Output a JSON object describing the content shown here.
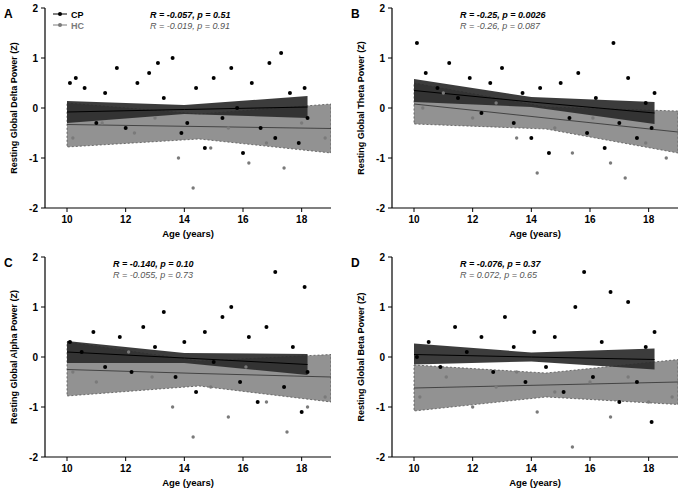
{
  "chart_data": [
    {
      "type": "scatter",
      "title": "A",
      "x_label": "Age (years)",
      "y_label": "Resting Global Delta Power (Z)",
      "xlim": [
        9.25,
        19
      ],
      "xticks": [
        10,
        12,
        14,
        16,
        18
      ],
      "ylim": [
        -2,
        2
      ],
      "yticks": [
        -2,
        -1,
        0,
        1,
        2
      ],
      "legend": "upper left",
      "series": [
        {
          "name": "CP",
          "color": "#000000",
          "marker": "circle",
          "stats": "R = -0.057, p = 0.51",
          "x": [
            10.1,
            10.3,
            10.6,
            11.0,
            11.3,
            11.7,
            12.0,
            12.4,
            12.8,
            13.1,
            13.3,
            13.6,
            13.9,
            14.1,
            14.4,
            14.7,
            15.0,
            15.3,
            15.6,
            15.8,
            16.0,
            16.3,
            16.6,
            16.9,
            17.1,
            17.3,
            17.6,
            17.9,
            18.1,
            18.2
          ],
          "values": [
            0.5,
            0.6,
            0.4,
            -0.3,
            0.3,
            0.8,
            -0.4,
            0.5,
            0.7,
            0.9,
            0.2,
            1.0,
            -0.5,
            -0.3,
            0.4,
            -0.8,
            0.6,
            -0.2,
            0.8,
            0.0,
            -0.9,
            0.5,
            -0.4,
            0.9,
            -0.6,
            1.1,
            0.3,
            -0.7,
            0.4,
            -0.2
          ],
          "fit": {
            "x": [
              10,
              14,
              18.2
            ],
            "values": [
              -0.08,
              -0.03,
              0.02
            ],
            "lower": [
              -0.3,
              -0.12,
              -0.2
            ],
            "upper": [
              0.14,
              0.06,
              0.24
            ]
          }
        },
        {
          "name": "HC",
          "color": "#7a7a7a",
          "marker": "circle",
          "stats": "R = -0.019, p = 0.91",
          "x": [
            10.2,
            11.2,
            12.3,
            13.0,
            13.8,
            14.3,
            14.9,
            15.5,
            16.2,
            16.8,
            17.4,
            18.0,
            18.8
          ],
          "values": [
            -0.6,
            -0.3,
            -0.5,
            -0.2,
            -1.0,
            -1.6,
            -0.8,
            -0.4,
            -1.1,
            -0.7,
            -1.2,
            -0.3,
            -0.6
          ],
          "fit": {
            "x": [
              10,
              14.5,
              19
            ],
            "values": [
              -0.33,
              -0.37,
              -0.41
            ],
            "lower": [
              -0.78,
              -0.62,
              -0.9
            ],
            "upper": [
              0.1,
              -0.12,
              0.08
            ]
          }
        }
      ]
    },
    {
      "type": "scatter",
      "title": "B",
      "x_label": "Age (years)",
      "y_label": "Resting Global Theta Power (Z)",
      "xlim": [
        9.25,
        19
      ],
      "xticks": [
        10,
        12,
        14,
        16,
        18
      ],
      "ylim": [
        -2,
        2
      ],
      "yticks": [
        -2,
        -1,
        0,
        1,
        2
      ],
      "series": [
        {
          "name": "CP",
          "color": "#000000",
          "marker": "circle",
          "stats": "R = -0.25, p = 0.0026",
          "x": [
            10.1,
            10.4,
            10.8,
            11.2,
            11.5,
            11.9,
            12.3,
            12.6,
            13.0,
            13.4,
            13.7,
            14.0,
            14.3,
            14.6,
            15.0,
            15.3,
            15.6,
            15.9,
            16.2,
            16.5,
            16.8,
            17.0,
            17.3,
            17.6,
            17.9,
            18.1,
            18.2
          ],
          "values": [
            1.3,
            0.7,
            0.4,
            0.9,
            0.2,
            0.6,
            -0.1,
            0.5,
            0.8,
            -0.3,
            0.3,
            -0.6,
            0.4,
            -0.9,
            0.5,
            -0.2,
            0.7,
            -0.5,
            0.2,
            -0.8,
            1.3,
            -0.3,
            0.6,
            -0.6,
            0.1,
            -0.4,
            0.3
          ],
          "fit": {
            "x": [
              10,
              14,
              18.2
            ],
            "values": [
              0.35,
              0.12,
              -0.1
            ],
            "lower": [
              0.12,
              0.02,
              -0.32
            ],
            "upper": [
              0.58,
              0.22,
              0.12
            ]
          }
        },
        {
          "name": "HC",
          "color": "#7a7a7a",
          "marker": "circle",
          "stats": "R = -0.26, p = 0.087",
          "x": [
            10.3,
            11.0,
            12.0,
            12.8,
            13.5,
            14.2,
            14.8,
            15.4,
            16.1,
            16.7,
            17.2,
            17.9,
            18.6
          ],
          "values": [
            0.0,
            0.3,
            -0.2,
            0.1,
            -0.6,
            -1.3,
            -0.4,
            -0.9,
            -0.2,
            -1.1,
            -1.4,
            -0.7,
            -1.0
          ],
          "fit": {
            "x": [
              10,
              14.5,
              19
            ],
            "values": [
              0.08,
              -0.2,
              -0.48
            ],
            "lower": [
              -0.32,
              -0.42,
              -0.9
            ],
            "upper": [
              0.5,
              0.02,
              -0.06
            ]
          }
        }
      ]
    },
    {
      "type": "scatter",
      "title": "C",
      "x_label": "Age (years)",
      "y_label": "Resting Global Alpha Power (Z)",
      "xlim": [
        9.25,
        19
      ],
      "xticks": [
        10,
        12,
        14,
        16,
        18
      ],
      "ylim": [
        -2,
        2
      ],
      "yticks": [
        -2,
        -1,
        0,
        1,
        2
      ],
      "series": [
        {
          "name": "CP",
          "color": "#000000",
          "marker": "circle",
          "stats": "R = -0.140, p = 0.10",
          "x": [
            10.1,
            10.5,
            10.9,
            11.3,
            11.8,
            12.2,
            12.6,
            13.0,
            13.3,
            13.7,
            14.0,
            14.4,
            14.7,
            15.0,
            15.3,
            15.6,
            15.9,
            16.2,
            16.5,
            16.8,
            17.1,
            17.4,
            17.7,
            18.0,
            18.1,
            18.2
          ],
          "values": [
            0.3,
            0.1,
            0.5,
            -0.2,
            0.4,
            -0.3,
            0.6,
            0.2,
            0.9,
            -0.4,
            0.3,
            -0.7,
            0.5,
            -0.1,
            0.8,
            1.0,
            -0.5,
            0.4,
            -0.9,
            0.6,
            1.7,
            -0.6,
            0.2,
            -1.1,
            1.4,
            -0.3
          ],
          "fit": {
            "x": [
              10,
              14,
              18.2
            ],
            "values": [
              0.1,
              -0.02,
              -0.15
            ],
            "lower": [
              -0.12,
              -0.12,
              -0.36
            ],
            "upper": [
              0.32,
              0.08,
              0.06
            ]
          }
        },
        {
          "name": "HC",
          "color": "#7a7a7a",
          "marker": "circle",
          "stats": "R = -0.055, p = 0.73",
          "x": [
            10.2,
            11.0,
            12.1,
            12.9,
            13.6,
            14.3,
            14.9,
            15.5,
            16.1,
            16.8,
            17.5,
            18.2,
            18.8
          ],
          "values": [
            -0.3,
            -0.5,
            0.1,
            -0.4,
            -1.0,
            -1.6,
            -0.6,
            -1.2,
            -0.2,
            -0.9,
            -1.5,
            -1.0,
            -0.8
          ],
          "fit": {
            "x": [
              10,
              14.5,
              19
            ],
            "values": [
              -0.25,
              -0.33,
              -0.4
            ],
            "lower": [
              -0.78,
              -0.58,
              -0.9
            ],
            "upper": [
              0.3,
              -0.08,
              0.05
            ]
          }
        }
      ]
    },
    {
      "type": "scatter",
      "title": "D",
      "x_label": "Age (years)",
      "y_label": "Resting Global Beta Power (Z)",
      "xlim": [
        9.25,
        19
      ],
      "xticks": [
        10,
        12,
        14,
        16,
        18
      ],
      "ylim": [
        -2,
        2
      ],
      "yticks": [
        -2,
        -1,
        0,
        1,
        2
      ],
      "series": [
        {
          "name": "CP",
          "color": "#000000",
          "marker": "circle",
          "stats": "R = -0.076, p = 0.37",
          "x": [
            10.1,
            10.5,
            10.9,
            11.4,
            11.8,
            12.3,
            12.7,
            13.1,
            13.4,
            13.8,
            14.1,
            14.5,
            14.8,
            15.1,
            15.5,
            15.8,
            16.1,
            16.4,
            16.7,
            17.0,
            17.3,
            17.6,
            17.9,
            18.1,
            18.2
          ],
          "values": [
            0.0,
            0.3,
            -0.2,
            0.6,
            0.1,
            0.4,
            -0.3,
            0.8,
            0.2,
            -0.5,
            0.5,
            -0.2,
            0.4,
            -0.7,
            1.0,
            1.7,
            -0.4,
            0.3,
            1.3,
            -0.9,
            1.1,
            -0.5,
            0.2,
            -1.3,
            0.5
          ],
          "fit": {
            "x": [
              10,
              14,
              18.2
            ],
            "values": [
              0.05,
              0.0,
              -0.05
            ],
            "lower": [
              -0.15,
              -0.09,
              -0.25
            ],
            "upper": [
              0.27,
              0.09,
              0.17
            ]
          }
        },
        {
          "name": "HC",
          "color": "#7a7a7a",
          "marker": "circle",
          "stats": "R = 0.072, p = 0.65",
          "x": [
            10.2,
            11.1,
            12.0,
            12.8,
            13.5,
            14.2,
            14.8,
            15.4,
            16.0,
            16.7,
            17.3,
            18.0,
            18.8
          ],
          "values": [
            -0.8,
            -0.4,
            -1.0,
            -0.6,
            -0.3,
            -1.1,
            -0.7,
            -1.8,
            -0.5,
            -1.2,
            -0.4,
            -0.9,
            -0.8
          ],
          "fit": {
            "x": [
              10,
              14.5,
              19
            ],
            "values": [
              -0.62,
              -0.56,
              -0.5
            ],
            "lower": [
              -1.08,
              -0.8,
              -0.95
            ],
            "upper": [
              -0.16,
              -0.32,
              -0.05
            ]
          }
        }
      ]
    }
  ]
}
